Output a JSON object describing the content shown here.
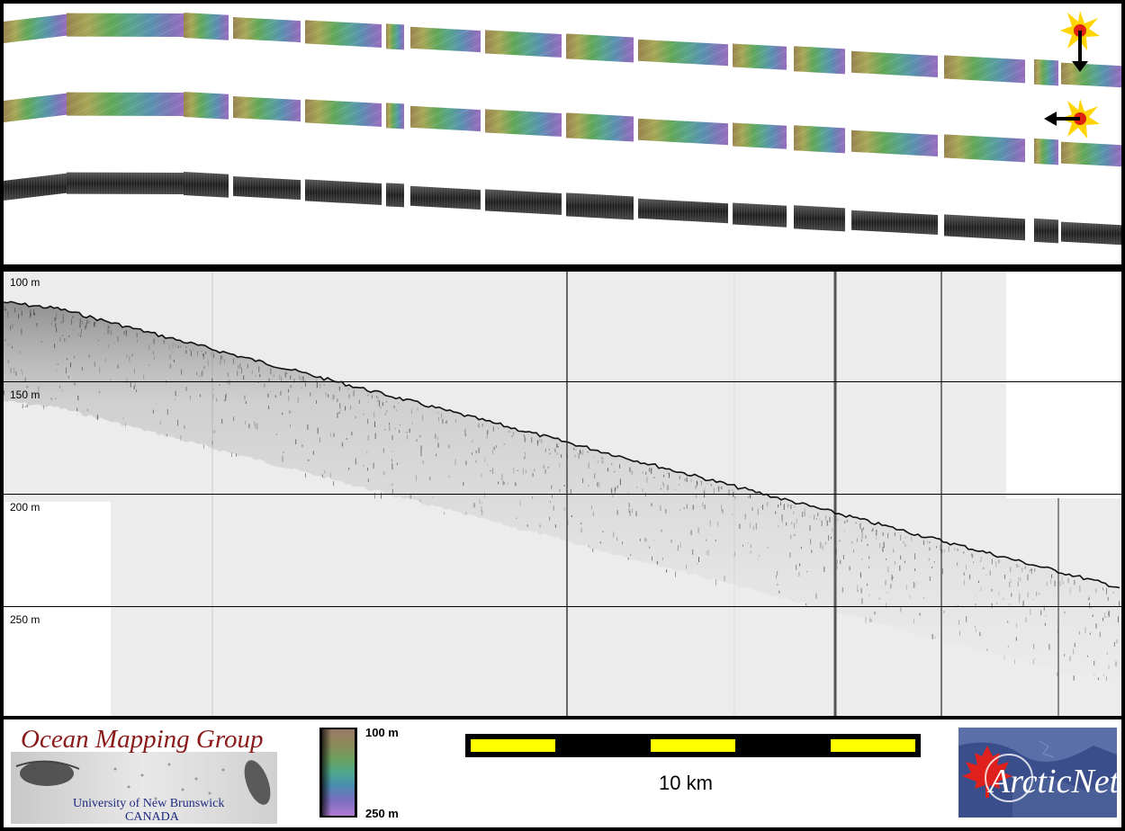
{
  "profile": {
    "depth_labels": [
      "100 m",
      "150 m",
      "200 m",
      "250 m"
    ]
  },
  "footer": {
    "omg_title": "Ocean Mapping Group",
    "omg_university": "University of New Brunswick",
    "omg_country": "CANADA",
    "colorbar_top": "100 m",
    "colorbar_bottom": "250 m",
    "scale_label": "10 km",
    "arcticnet_logo_text": "ArcticNet"
  },
  "colors": {
    "scale_yellow": "#ffff00",
    "omg_red": "#8b1a1a",
    "omg_blue": "#1f2a80",
    "arctic_bg": "#3a4e8c",
    "maple_red": "#e0201c"
  }
}
